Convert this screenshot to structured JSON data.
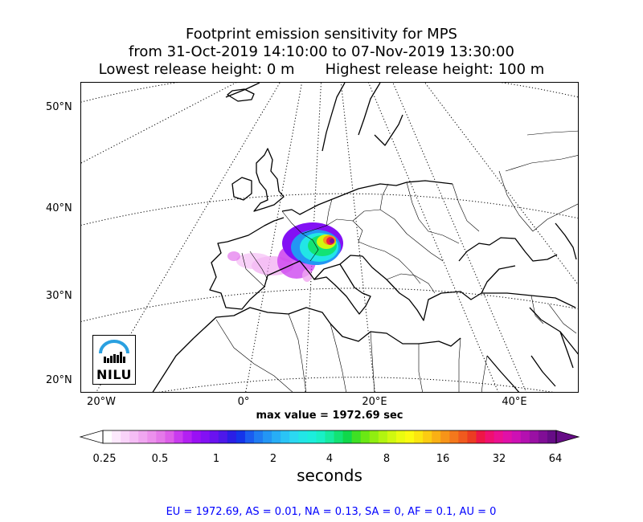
{
  "title": {
    "line1": "Footprint emission sensitivity for MPS",
    "line2": "from 31-Oct-2019 14:10:00 to 07-Nov-2019 13:30:00",
    "line3_left": "Lowest release height: 0 m",
    "line3_right": "Highest release height: 100 m"
  },
  "map": {
    "projection": "conic",
    "lat_labels": [
      "50°N",
      "40°N",
      "30°N",
      "20°N"
    ],
    "lon_labels": [
      "20°W",
      "0°",
      "20°E",
      "40°E"
    ],
    "gridlines": true,
    "logo_text": "NILU",
    "max_value": "max value = 1972.69 sec"
  },
  "colorbar": {
    "tick_labels": [
      "0.25",
      "0.5",
      "1",
      "2",
      "4",
      "8",
      "16",
      "32",
      "64"
    ],
    "label": "seconds",
    "extend": "both",
    "colors": [
      "#ffffff",
      "#fde9fd",
      "#f9d3f9",
      "#f5bdf5",
      "#f0a6f0",
      "#ec90ec",
      "#e579e9",
      "#dd5ee9",
      "#c93bef",
      "#b320f2",
      "#9a10f4",
      "#8310f4",
      "#6a12f0",
      "#4d18ea",
      "#2a1ee6",
      "#1434ea",
      "#1a5cf0",
      "#1f7cf2",
      "#2396f4",
      "#27aef6",
      "#2ac4f6",
      "#2bd8f2",
      "#22e6e6",
      "#1ceedc",
      "#19f0c6",
      "#16eba0",
      "#12e374",
      "#10d84a",
      "#3ee024",
      "#6ae814",
      "#90ee10",
      "#b2f410",
      "#d0f810",
      "#eafc10",
      "#fbfb10",
      "#fbe610",
      "#fbcc12",
      "#f9b014",
      "#f79418",
      "#f4781c",
      "#f05a1e",
      "#ec3c22",
      "#ee1646",
      "#f01070",
      "#ec1090",
      "#e010a8",
      "#ce10b4",
      "#b410b0",
      "#9a10a4",
      "#800e96",
      "#660c86"
    ]
  },
  "stats": {
    "text": "EU = 1972.69,  AS = 0.01,  NA = 0.13,  SA = 0,  AF = 0.1,  AU = 0"
  }
}
